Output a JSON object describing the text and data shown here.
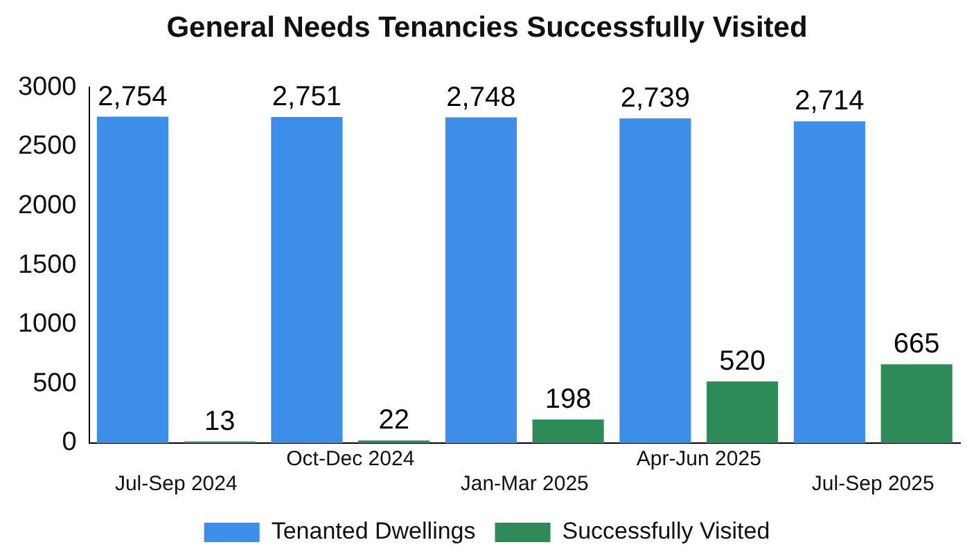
{
  "chart_data": {
    "type": "bar",
    "title": "General Needs Tenancies Successfully Visited",
    "categories": [
      "Jul-Sep 2024",
      "Oct-Dec 2024",
      "Jan-Mar 2025",
      "Apr-Jun 2025",
      "Jul-Sep 2025"
    ],
    "series": [
      {
        "name": "Tenanted Dwellings",
        "color": "#3c8ee9",
        "values": [
          2754,
          2751,
          2748,
          2739,
          2714
        ],
        "value_labels": [
          "2,754",
          "2,751",
          "2,748",
          "2,739",
          "2,714"
        ]
      },
      {
        "name": "Successfully Visited",
        "color": "#2e8b57",
        "values": [
          13,
          22,
          198,
          520,
          665
        ],
        "value_labels": [
          "13",
          "22",
          "198",
          "520",
          "665"
        ]
      }
    ],
    "ylim": [
      0,
      3000
    ],
    "yticks": [
      0,
      500,
      1000,
      1500,
      2000,
      2500,
      3000
    ],
    "grid": false,
    "legend": "bottom"
  }
}
